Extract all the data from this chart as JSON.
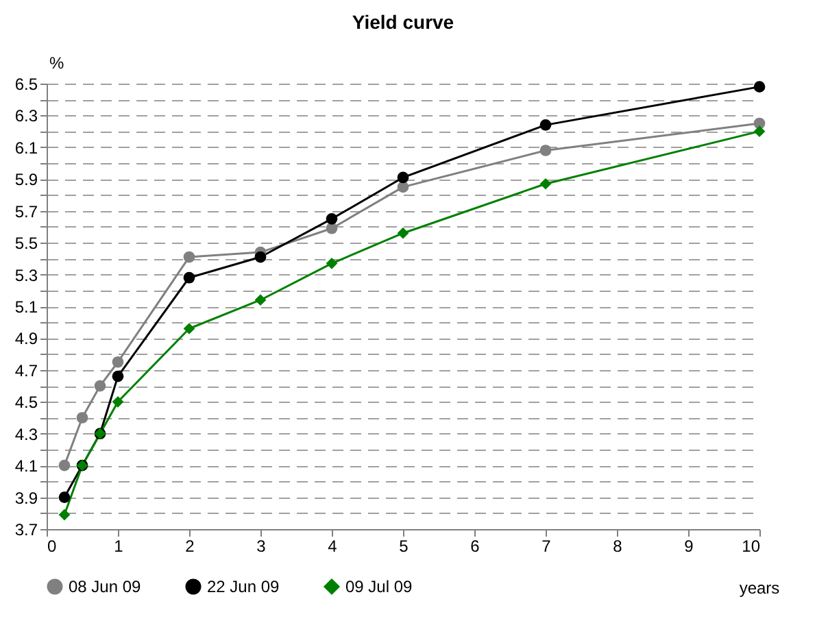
{
  "chart_data": {
    "type": "line",
    "title": "Yield curve",
    "xlabel": "years",
    "ylabel": "%",
    "x": [
      0.25,
      0.5,
      0.75,
      1,
      2,
      3,
      4,
      5,
      7,
      10
    ],
    "series": [
      {
        "name": "08 Jun 09",
        "color": "#808080",
        "marker": "circle",
        "values": [
          4.1,
          4.4,
          4.6,
          4.75,
          5.41,
          5.44,
          5.59,
          5.85,
          6.08,
          6.25
        ]
      },
      {
        "name": "22 Jun 09",
        "color": "#000000",
        "marker": "circle",
        "values": [
          3.9,
          4.1,
          4.3,
          4.66,
          5.28,
          5.41,
          5.65,
          5.91,
          6.24,
          6.48
        ]
      },
      {
        "name": "09 Jul 09",
        "color": "#008000",
        "marker": "diamond",
        "values": [
          3.79,
          4.1,
          4.3,
          4.5,
          4.96,
          5.14,
          5.37,
          5.56,
          5.87,
          6.2
        ]
      }
    ],
    "xlim": [
      0,
      10
    ],
    "xticks": [
      0,
      1,
      2,
      3,
      4,
      5,
      6,
      7,
      8,
      9,
      10
    ],
    "ylim": [
      3.7,
      6.5
    ],
    "yticks": [
      3.7,
      {
        "value": 3.8,
        "label": null
      },
      3.9,
      {
        "value": 4.0,
        "label": null
      },
      4.1,
      {
        "value": 4.2,
        "label": null
      },
      4.3,
      {
        "value": 4.4,
        "label": null
      },
      4.5,
      {
        "value": 4.6,
        "label": null
      },
      4.7,
      {
        "value": 4.8,
        "label": null
      },
      4.9,
      {
        "value": 5.0,
        "label": null
      },
      5.1,
      {
        "value": 5.2,
        "label": null
      },
      5.3,
      {
        "value": 5.4,
        "label": null
      },
      5.5,
      {
        "value": 5.6,
        "label": null
      },
      5.7,
      {
        "value": 5.8,
        "label": null
      },
      5.9,
      {
        "value": 6.0,
        "label": null
      },
      6.1,
      {
        "value": 6.2,
        "label": null
      },
      6.3,
      {
        "value": 6.4,
        "label": null
      },
      6.5
    ],
    "grid": "y",
    "legend": "bottom",
    "line_style": "solid"
  }
}
